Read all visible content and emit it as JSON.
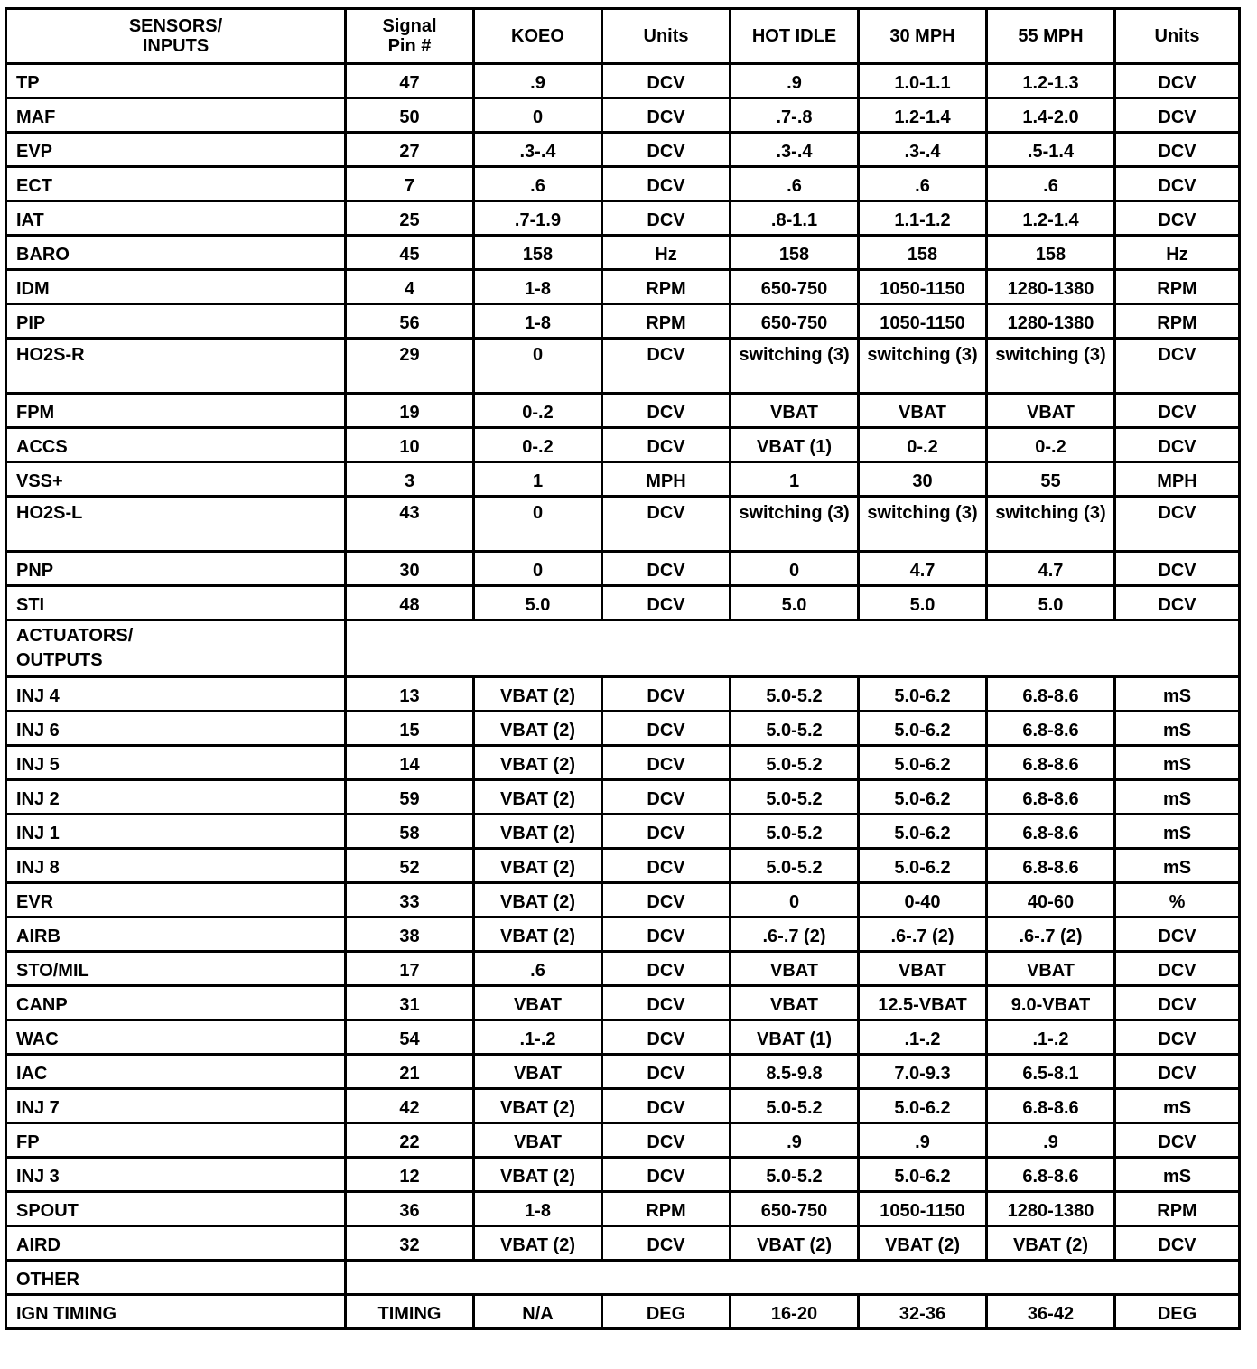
{
  "headers": [
    "SENSORS/ INPUTS",
    "Signal Pin #",
    "KOEO",
    "Units",
    "HOT IDLE",
    "30 MPH",
    "55 MPH",
    "Units"
  ],
  "sections": [
    {
      "title": "",
      "rows": [
        [
          "TP",
          "47",
          ".9",
          "DCV",
          ".9",
          "1.0-1.1",
          "1.2-1.3",
          "DCV"
        ],
        [
          "MAF",
          "50",
          "0",
          "DCV",
          ".7-.8",
          "1.2-1.4",
          "1.4-2.0",
          "DCV"
        ],
        [
          "EVP",
          "27",
          ".3-.4",
          "DCV",
          ".3-.4",
          ".3-.4",
          ".5-1.4",
          "DCV"
        ],
        [
          "ECT",
          "7",
          ".6",
          "DCV",
          ".6",
          ".6",
          ".6",
          "DCV"
        ],
        [
          "IAT",
          "25",
          ".7-1.9",
          "DCV",
          ".8-1.1",
          "1.1-1.2",
          "1.2-1.4",
          "DCV"
        ],
        [
          "BARO",
          "45",
          "158",
          "Hz",
          "158",
          "158",
          "158",
          "Hz"
        ],
        [
          "IDM",
          "4",
          "1-8",
          "RPM",
          "650-750",
          "1050-1150",
          "1280-1380",
          "RPM"
        ],
        [
          "PIP",
          "56",
          "1-8",
          "RPM",
          "650-750",
          "1050-1150",
          "1280-1380",
          "RPM"
        ],
        [
          "HO2S-R",
          "29",
          "0",
          "DCV",
          "switching (3)",
          "switching (3)",
          "switching (3)",
          "DCV"
        ],
        [
          "FPM",
          "19",
          "0-.2",
          "DCV",
          "VBAT",
          "VBAT",
          "VBAT",
          "DCV"
        ],
        [
          "ACCS",
          "10",
          "0-.2",
          "DCV",
          "VBAT (1)",
          "0-.2",
          "0-.2",
          "DCV"
        ],
        [
          "VSS+",
          "3",
          "1",
          "MPH",
          "1",
          "30",
          "55",
          "MPH"
        ],
        [
          "HO2S-L",
          "43",
          "0",
          "DCV",
          "switching (3)",
          "switching (3)",
          "switching (3)",
          "DCV"
        ],
        [
          "PNP",
          "30",
          "0",
          "DCV",
          "0",
          "4.7",
          "4.7",
          "DCV"
        ],
        [
          "STI",
          "48",
          "5.0",
          "DCV",
          "5.0",
          "5.0",
          "5.0",
          "DCV"
        ]
      ]
    },
    {
      "title": "ACTUATORS/ OUTPUTS",
      "rows": [
        [
          "INJ 4",
          "13",
          "VBAT (2)",
          "DCV",
          "5.0-5.2",
          "5.0-6.2",
          "6.8-8.6",
          "mS"
        ],
        [
          "INJ 6",
          "15",
          "VBAT (2)",
          "DCV",
          "5.0-5.2",
          "5.0-6.2",
          "6.8-8.6",
          "mS"
        ],
        [
          "INJ 5",
          "14",
          "VBAT (2)",
          "DCV",
          "5.0-5.2",
          "5.0-6.2",
          "6.8-8.6",
          "mS"
        ],
        [
          "INJ 2",
          "59",
          "VBAT (2)",
          "DCV",
          "5.0-5.2",
          "5.0-6.2",
          "6.8-8.6",
          "mS"
        ],
        [
          "INJ 1",
          "58",
          "VBAT (2)",
          "DCV",
          "5.0-5.2",
          "5.0-6.2",
          "6.8-8.6",
          "mS"
        ],
        [
          "INJ 8",
          "52",
          "VBAT (2)",
          "DCV",
          "5.0-5.2",
          "5.0-6.2",
          "6.8-8.6",
          "mS"
        ],
        [
          "EVR",
          "33",
          "VBAT (2)",
          "DCV",
          "0",
          "0-40",
          "40-60",
          "%"
        ],
        [
          "AIRB",
          "38",
          "VBAT (2)",
          "DCV",
          ".6-.7 (2)",
          ".6-.7 (2)",
          ".6-.7 (2)",
          "DCV"
        ],
        [
          "STO/MIL",
          "17",
          ".6",
          "DCV",
          "VBAT",
          "VBAT",
          "VBAT",
          "DCV"
        ],
        [
          "CANP",
          "31",
          "VBAT",
          "DCV",
          "VBAT",
          "12.5-VBAT",
          "9.0-VBAT",
          "DCV"
        ],
        [
          "WAC",
          "54",
          ".1-.2",
          "DCV",
          "VBAT (1)",
          ".1-.2",
          ".1-.2",
          "DCV"
        ],
        [
          "IAC",
          "21",
          "VBAT",
          "DCV",
          "8.5-9.8",
          "7.0-9.3",
          "6.5-8.1",
          "DCV"
        ],
        [
          "INJ 7",
          "42",
          "VBAT (2)",
          "DCV",
          "5.0-5.2",
          "5.0-6.2",
          "6.8-8.6",
          "mS"
        ],
        [
          "FP",
          "22",
          "VBAT",
          "DCV",
          ".9",
          ".9",
          ".9",
          "DCV"
        ],
        [
          "INJ 3",
          "12",
          "VBAT (2)",
          "DCV",
          "5.0-5.2",
          "5.0-6.2",
          "6.8-8.6",
          "mS"
        ],
        [
          "SPOUT",
          "36",
          "1-8",
          "RPM",
          "650-750",
          "1050-1150",
          "1280-1380",
          "RPM"
        ],
        [
          "AIRD",
          "32",
          "VBAT (2)",
          "DCV",
          "VBAT (2)",
          "VBAT (2)",
          "VBAT (2)",
          "DCV"
        ]
      ]
    },
    {
      "title": "OTHER",
      "rows": [
        [
          "IGN TIMING",
          "TIMING",
          "N/A",
          "DEG",
          "16-20",
          "32-36",
          "36-42",
          "DEG"
        ]
      ]
    }
  ]
}
